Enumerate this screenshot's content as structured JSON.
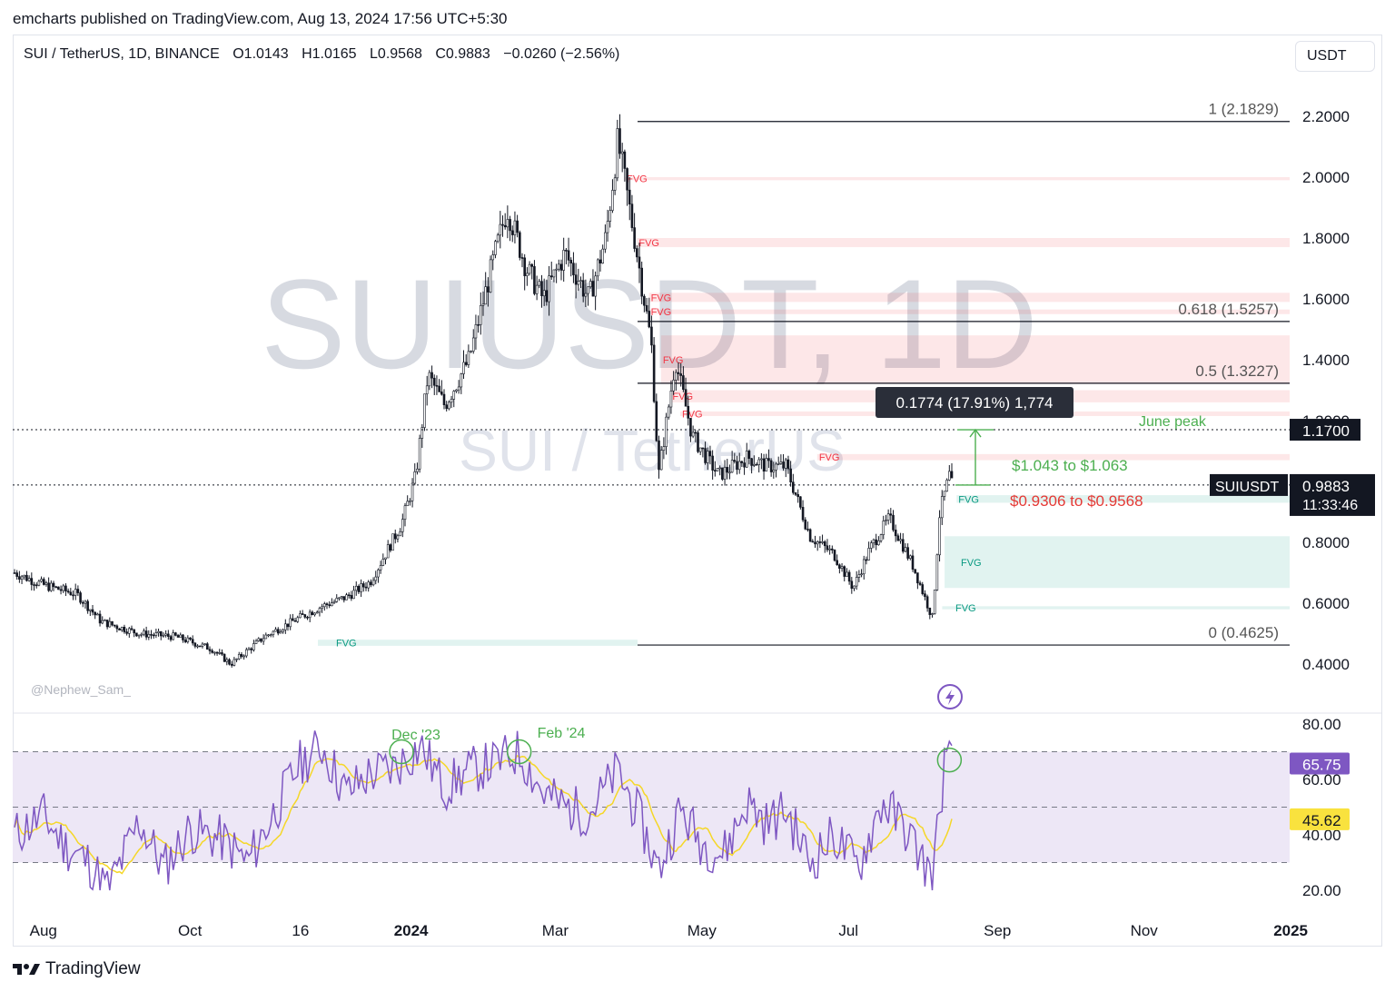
{
  "header": {
    "publisher": "emcharts published on TradingView.com, Aug 13, 2024 17:56 UTC+5:30",
    "symbol": "SUI / TetherUS, 1D, BINANCE",
    "open": "O1.0143",
    "high": "H1.0165",
    "low": "L0.9568",
    "close": "C0.9883",
    "change": "−0.0260 (−2.56%)",
    "currency_button": "USDT"
  },
  "watermark": {
    "main": "SUIUSDT, 1D",
    "sub": "SUI / TetherUS"
  },
  "author_tag": "@Nephew_Sam_",
  "footer": {
    "brand": "TradingView"
  },
  "colors": {
    "fvg_bear": "#f23645",
    "fvg_bull": "#089981",
    "green_text": "#4caf50",
    "red_text": "#e53935",
    "rsi_line": "#7e57c2",
    "rsi_ma": "#f9e23e",
    "rsi_band": "#ede7f6"
  },
  "chart_data": [
    {
      "type": "candlestick",
      "x_ticks": [
        "Aug",
        "Oct",
        "16",
        "2024",
        "Mar",
        "May",
        "Jul",
        "Sep",
        "Nov",
        "2025"
      ],
      "y_ticks": [
        "2.2000",
        "2.0000",
        "1.8000",
        "1.6000",
        "1.4000",
        "1.2000",
        "0.8000",
        "0.6000",
        "0.4000"
      ],
      "ylim": [
        0.4,
        2.2
      ],
      "price_points": [
        [
          "2023-07-20",
          0.7
        ],
        [
          "2023-08-01",
          0.66
        ],
        [
          "2023-08-15",
          0.63
        ],
        [
          "2023-08-25",
          0.54
        ],
        [
          "2023-09-10",
          0.5
        ],
        [
          "2023-09-25",
          0.49
        ],
        [
          "2023-10-10",
          0.45
        ],
        [
          "2023-10-18",
          0.4
        ],
        [
          "2023-11-01",
          0.49
        ],
        [
          "2023-11-15",
          0.55
        ],
        [
          "2023-11-25",
          0.59
        ],
        [
          "2023-12-05",
          0.62
        ],
        [
          "2023-12-15",
          0.67
        ],
        [
          "2023-12-28",
          0.86
        ],
        [
          "2024-01-03",
          1.02
        ],
        [
          "2024-01-08",
          1.35
        ],
        [
          "2024-01-15",
          1.25
        ],
        [
          "2024-01-25",
          1.4
        ],
        [
          "2024-02-05",
          1.75
        ],
        [
          "2024-02-10",
          1.9
        ],
        [
          "2024-02-18",
          1.7
        ],
        [
          "2024-02-25",
          1.6
        ],
        [
          "2024-03-05",
          1.75
        ],
        [
          "2024-03-15",
          1.6
        ],
        [
          "2024-03-22",
          1.8
        ],
        [
          "2024-03-27",
          2.12
        ],
        [
          "2024-04-03",
          1.8
        ],
        [
          "2024-04-10",
          1.45
        ],
        [
          "2024-04-13",
          1.02
        ],
        [
          "2024-04-20",
          1.4
        ],
        [
          "2024-04-27",
          1.15
        ],
        [
          "2024-05-08",
          1.02
        ],
        [
          "2024-05-20",
          1.08
        ],
        [
          "2024-05-28",
          1.05
        ],
        [
          "2024-06-05",
          1.05
        ],
        [
          "2024-06-15",
          0.82
        ],
        [
          "2024-06-25",
          0.76
        ],
        [
          "2024-07-03",
          0.65
        ],
        [
          "2024-07-10",
          0.78
        ],
        [
          "2024-07-18",
          0.88
        ],
        [
          "2024-07-28",
          0.72
        ],
        [
          "2024-08-05",
          0.55
        ],
        [
          "2024-08-08",
          0.9
        ],
        [
          "2024-08-12",
          1.02
        ],
        [
          "2024-08-13",
          0.9883
        ]
      ],
      "last_price": "0.9883",
      "symbol_label": "SUIUSDT",
      "countdown": "11:33:46",
      "june_peak_label": "June peak",
      "june_peak_price": "1.1700",
      "fib_levels": [
        {
          "label": "1 (2.1829)",
          "value": 2.1829
        },
        {
          "label": "0.618 (1.5257)",
          "value": 1.5257
        },
        {
          "label": "0.5 (1.3227)",
          "value": 1.3227
        },
        {
          "label": "0 (0.4625)",
          "value": 0.4625
        }
      ],
      "fvg_zones": [
        {
          "label": "FVG",
          "kind": "bear",
          "low": 1.99,
          "high": 2.0
        },
        {
          "label": "FVG",
          "kind": "bear",
          "low": 1.77,
          "high": 1.8
        },
        {
          "label": "FVG",
          "kind": "bear",
          "low": 1.59,
          "high": 1.62
        },
        {
          "label": "FVG",
          "kind": "bear",
          "low": 1.55,
          "high": 1.565
        },
        {
          "label": "FVG",
          "kind": "bear",
          "low": 1.32,
          "high": 1.48
        },
        {
          "label": "FVG",
          "kind": "bear",
          "low": 1.26,
          "high": 1.3
        },
        {
          "label": "FVG",
          "kind": "bear",
          "low": 1.215,
          "high": 1.23
        },
        {
          "label": "FVG",
          "kind": "bear",
          "low": 1.07,
          "high": 1.09
        },
        {
          "label": "FVG",
          "kind": "bull",
          "low": 0.93,
          "high": 0.955
        },
        {
          "label": "FVG",
          "kind": "bull",
          "low": 0.65,
          "high": 0.82
        },
        {
          "label": "FVG",
          "kind": "bull",
          "low": 0.58,
          "high": 0.59
        },
        {
          "label": "FVG",
          "kind": "bull",
          "low": 0.46,
          "high": 0.48
        }
      ],
      "fvg_label_positions_note": "",
      "measure_label": "0.1774 (17.91%) 1,774",
      "annotations": [
        "$1.043 to $1.063",
        "$0.9306 to $0.9568"
      ]
    },
    {
      "type": "line",
      "name": "RSI",
      "y_ticks": [
        "80.00",
        "60.00",
        "40.00",
        "20.00"
      ],
      "ylim": [
        15,
        85
      ],
      "bands": [
        30,
        50,
        70
      ],
      "rsi_value": "65.75",
      "ma_value": "45.62",
      "annotations": [
        "Dec '23",
        "Feb '24"
      ],
      "rsi_points": [
        [
          "2023-07-20",
          40
        ],
        [
          "2023-08-01",
          47
        ],
        [
          "2023-08-10",
          36
        ],
        [
          "2023-08-20",
          30
        ],
        [
          "2023-08-28",
          20
        ],
        [
          "2023-09-10",
          45
        ],
        [
          "2023-09-20",
          28
        ],
        [
          "2023-10-01",
          42
        ],
        [
          "2023-10-15",
          38
        ],
        [
          "2023-10-25",
          30
        ],
        [
          "2023-11-05",
          48
        ],
        [
          "2023-11-15",
          65
        ],
        [
          "2023-11-25",
          72
        ],
        [
          "2023-12-05",
          55
        ],
        [
          "2023-12-15",
          62
        ],
        [
          "2023-12-25",
          64
        ],
        [
          "2024-01-05",
          72
        ],
        [
          "2024-01-15",
          57
        ],
        [
          "2024-01-25",
          63
        ],
        [
          "2024-02-05",
          66
        ],
        [
          "2024-02-15",
          70
        ],
        [
          "2024-02-25",
          55
        ],
        [
          "2024-03-05",
          50
        ],
        [
          "2024-03-15",
          48
        ],
        [
          "2024-03-27",
          63
        ],
        [
          "2024-04-05",
          46
        ],
        [
          "2024-04-13",
          27
        ],
        [
          "2024-04-22",
          49
        ],
        [
          "2024-05-01",
          37
        ],
        [
          "2024-05-10",
          33
        ],
        [
          "2024-05-20",
          52
        ],
        [
          "2024-05-28",
          44
        ],
        [
          "2024-06-05",
          49
        ],
        [
          "2024-06-15",
          30
        ],
        [
          "2024-06-25",
          40
        ],
        [
          "2024-07-05",
          28
        ],
        [
          "2024-07-15",
          52
        ],
        [
          "2024-07-25",
          42
        ],
        [
          "2024-08-05",
          24
        ],
        [
          "2024-08-10",
          66
        ],
        [
          "2024-08-13",
          65.75
        ]
      ]
    }
  ]
}
